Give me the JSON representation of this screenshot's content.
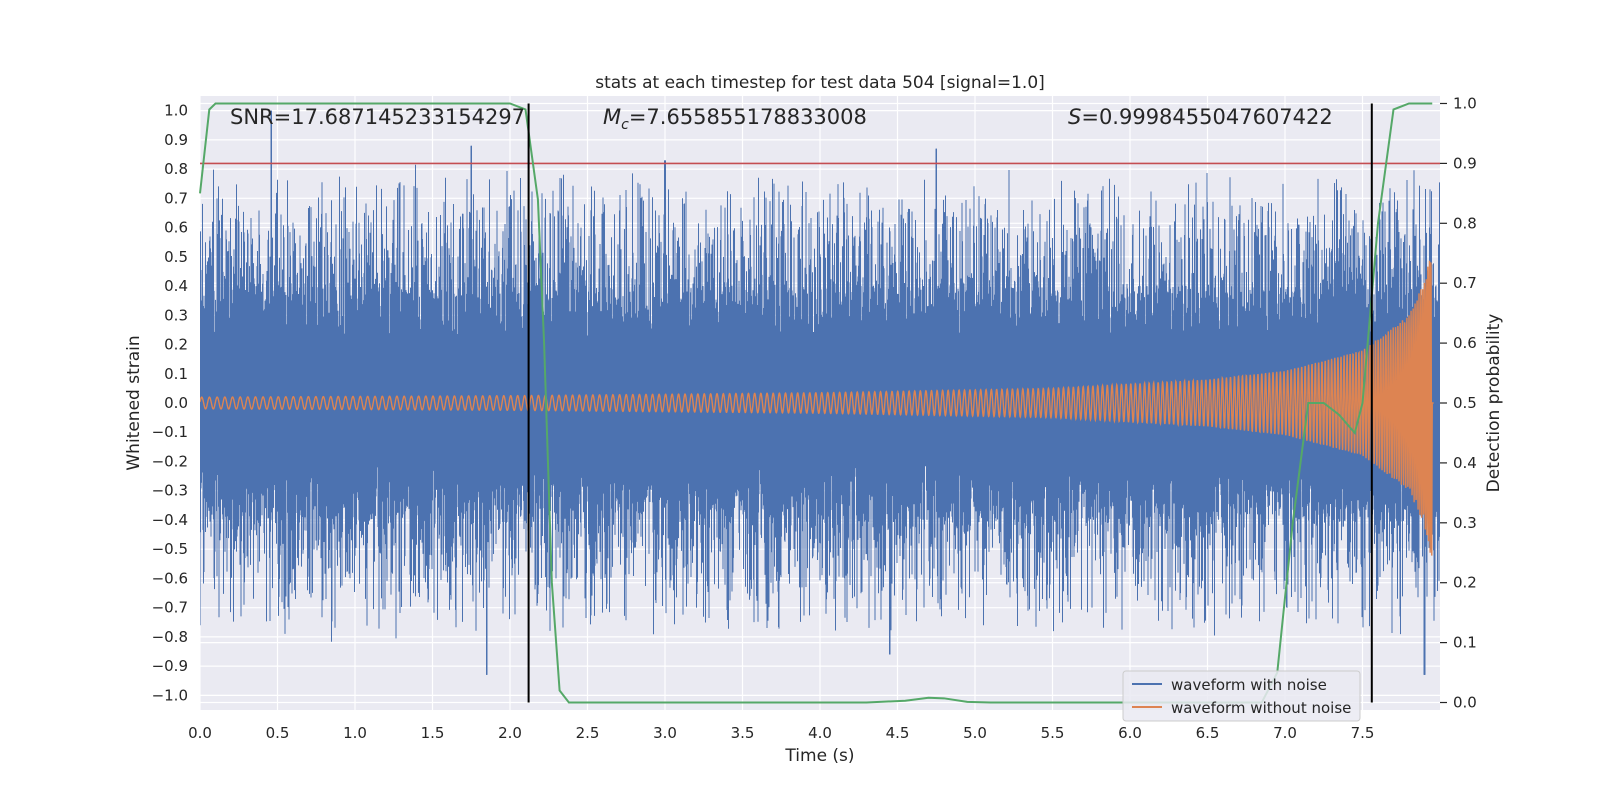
{
  "chart_data": {
    "type": "line",
    "title": "stats at each timestep for test data 504 [signal=1.0]",
    "xlabel": "Time (s)",
    "ylabel_left": "Whitened strain",
    "ylabel_right": "Detection probability",
    "xlim": [
      0,
      8
    ],
    "ylim_left": [
      -1.05,
      1.05
    ],
    "ylim_right": [
      -0.0125,
      1.0125
    ],
    "grid": true,
    "legend_position": "lower-right",
    "x_ticks": [
      "0.0",
      "0.5",
      "1.0",
      "1.5",
      "2.0",
      "2.5",
      "3.0",
      "3.5",
      "4.0",
      "4.5",
      "5.0",
      "5.5",
      "6.0",
      "6.5",
      "7.0",
      "7.5"
    ],
    "y_left_ticks": [
      "1.0",
      "0.9",
      "0.8",
      "0.7",
      "0.6",
      "0.5",
      "0.4",
      "0.3",
      "0.2",
      "0.1",
      "0.0",
      "−0.1",
      "−0.2",
      "−0.3",
      "−0.4",
      "−0.5",
      "−0.6",
      "−0.7",
      "−0.8",
      "−0.9",
      "−1.0"
    ],
    "y_right_ticks": [
      "1.0",
      "0.9",
      "0.8",
      "0.7",
      "0.6",
      "0.5",
      "0.4",
      "0.3",
      "0.2",
      "0.1",
      "0.0"
    ],
    "annotations": {
      "snr": "SNR=17.687145233154297",
      "mc_symbol": "M",
      "mc_sub": "c",
      "mc_value": "=7.655855178833008",
      "s_symbol": "S",
      "s_value": "=0.9998455047607422"
    },
    "series": [
      {
        "name": "waveform with noise",
        "color": "#4c72b0",
        "axis": "left",
        "style": "dense noisy oscillation, mostly within ±0.6 with spikes near ±1.0",
        "notable_peaks": [
          {
            "x": 0.46,
            "y": 1.0
          },
          {
            "x": 1.75,
            "y": 0.88
          },
          {
            "x": 1.85,
            "y": -0.93
          },
          {
            "x": 3.0,
            "y": 0.83
          },
          {
            "x": 4.45,
            "y": -0.86
          },
          {
            "x": 4.75,
            "y": 0.87
          },
          {
            "x": 7.9,
            "y": -0.93
          }
        ]
      },
      {
        "name": "waveform without noise",
        "color": "#dd8452",
        "axis": "left",
        "style": "chirp: amplitude grows with time",
        "envelope": [
          [
            0.0,
            0.02
          ],
          [
            2.0,
            0.025
          ],
          [
            4.0,
            0.035
          ],
          [
            5.5,
            0.05
          ],
          [
            6.5,
            0.08
          ],
          [
            7.0,
            0.11
          ],
          [
            7.5,
            0.18
          ],
          [
            7.8,
            0.3
          ],
          [
            7.9,
            0.42
          ],
          [
            7.95,
            0.55
          ]
        ]
      },
      {
        "name": "detection probability",
        "color": "#55a868",
        "axis": "right",
        "points": [
          [
            0.0,
            0.85
          ],
          [
            0.06,
            0.99
          ],
          [
            0.1,
            1.0
          ],
          [
            2.0,
            1.0
          ],
          [
            2.1,
            0.99
          ],
          [
            2.18,
            0.84
          ],
          [
            2.22,
            0.6
          ],
          [
            2.27,
            0.2
          ],
          [
            2.32,
            0.02
          ],
          [
            2.38,
            0.0
          ],
          [
            4.3,
            0.0
          ],
          [
            4.55,
            0.003
          ],
          [
            4.7,
            0.008
          ],
          [
            4.8,
            0.007
          ],
          [
            4.95,
            0.001
          ],
          [
            5.1,
            0.0
          ],
          [
            6.85,
            0.0
          ],
          [
            6.95,
            0.05
          ],
          [
            7.05,
            0.3
          ],
          [
            7.15,
            0.5
          ],
          [
            7.25,
            0.5
          ],
          [
            7.35,
            0.48
          ],
          [
            7.45,
            0.45
          ],
          [
            7.5,
            0.5
          ],
          [
            7.6,
            0.8
          ],
          [
            7.7,
            0.99
          ],
          [
            7.8,
            1.0
          ],
          [
            7.95,
            1.0
          ]
        ]
      }
    ],
    "threshold_line": {
      "value": 0.9,
      "axis": "right",
      "color": "#c44e52"
    },
    "vertical_lines": [
      {
        "x": 2.12,
        "color": "#000000"
      },
      {
        "x": 7.56,
        "color": "#000000"
      }
    ],
    "legend_entries": [
      {
        "label": "waveform with noise",
        "color": "#4c72b0"
      },
      {
        "label": "waveform without noise",
        "color": "#dd8452"
      }
    ]
  }
}
